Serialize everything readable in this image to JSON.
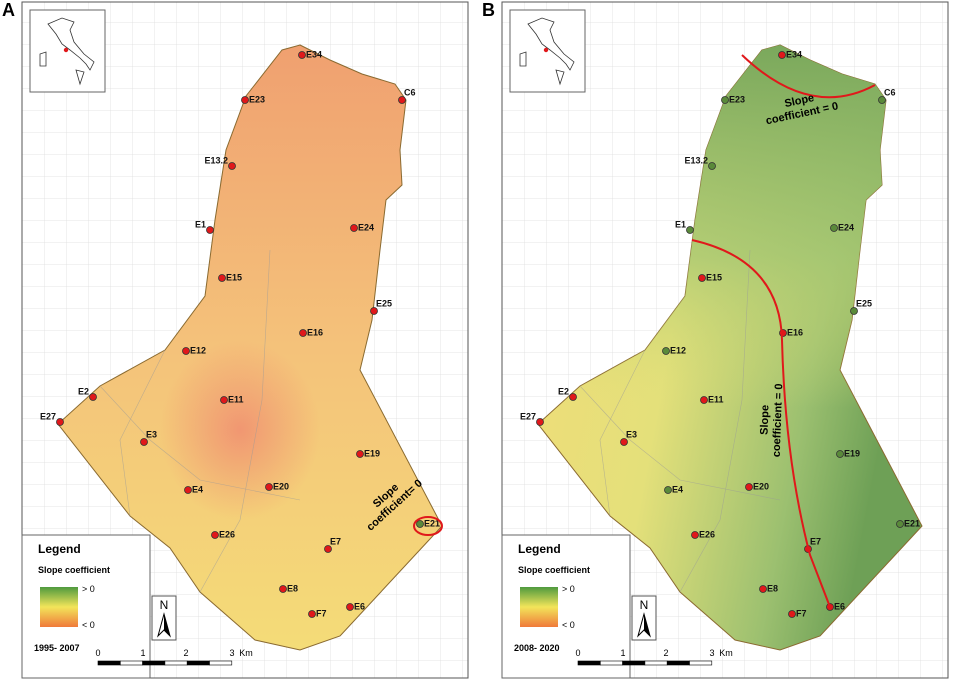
{
  "panels": [
    {
      "letter": "A",
      "period": "1995- 2007",
      "legend": {
        "title": "Legend",
        "subtitle": "Slope coefficient",
        "high": "> 0",
        "low": "< 0"
      },
      "north": "N",
      "scale": [
        "0",
        "1",
        "2",
        "3",
        "Km"
      ],
      "annotations": [
        [
          "Slope",
          "coefficient= 0"
        ]
      ],
      "stations": [
        {
          "label": "E34",
          "color": "#e0181b"
        },
        {
          "label": "E23",
          "color": "#e0181b"
        },
        {
          "label": "C6",
          "color": "#e0181b"
        },
        {
          "label": "E13.2",
          "color": "#e0181b"
        },
        {
          "label": "E1",
          "color": "#e0181b"
        },
        {
          "label": "E24",
          "color": "#e0181b"
        },
        {
          "label": "E15",
          "color": "#e0181b"
        },
        {
          "label": "E25",
          "color": "#e0181b"
        },
        {
          "label": "E16",
          "color": "#e0181b"
        },
        {
          "label": "E12",
          "color": "#e0181b"
        },
        {
          "label": "E2",
          "color": "#e0181b"
        },
        {
          "label": "E11",
          "color": "#e0181b"
        },
        {
          "label": "E27",
          "color": "#e0181b"
        },
        {
          "label": "E3",
          "color": "#e0181b"
        },
        {
          "label": "E19",
          "color": "#e0181b"
        },
        {
          "label": "E4",
          "color": "#e0181b"
        },
        {
          "label": "E20",
          "color": "#e0181b"
        },
        {
          "label": "E21",
          "color": "#5a8a3a"
        },
        {
          "label": "E26",
          "color": "#e0181b"
        },
        {
          "label": "E7",
          "color": "#e0181b"
        },
        {
          "label": "E8",
          "color": "#e0181b"
        },
        {
          "label": "E6",
          "color": "#e0181b"
        },
        {
          "label": "F7",
          "color": "#e0181b"
        }
      ]
    },
    {
      "letter": "B",
      "period": "2008- 2020",
      "legend": {
        "title": "Legend",
        "subtitle": "Slope coefficient",
        "high": "> 0",
        "low": "< 0"
      },
      "north": "N",
      "scale": [
        "0",
        "1",
        "2",
        "3",
        "Km"
      ],
      "annotations": [
        [
          "Slope",
          "coefficient = 0"
        ],
        [
          "Slope",
          "coefficient = 0"
        ]
      ],
      "stations": [
        {
          "label": "E34",
          "color": "#e0181b"
        },
        {
          "label": "E23",
          "color": "#5a8a3a"
        },
        {
          "label": "C6",
          "color": "#5a8a3a"
        },
        {
          "label": "E13.2",
          "color": "#5a8a3a"
        },
        {
          "label": "E1",
          "color": "#5a8a3a"
        },
        {
          "label": "E24",
          "color": "#5a8a3a"
        },
        {
          "label": "E15",
          "color": "#e0181b"
        },
        {
          "label": "E25",
          "color": "#5a8a3a"
        },
        {
          "label": "E16",
          "color": "#e0181b"
        },
        {
          "label": "E12",
          "color": "#5a8a3a"
        },
        {
          "label": "E2",
          "color": "#e0181b"
        },
        {
          "label": "E11",
          "color": "#e0181b"
        },
        {
          "label": "E27",
          "color": "#e0181b"
        },
        {
          "label": "E3",
          "color": "#e0181b"
        },
        {
          "label": "E19",
          "color": "#5a8a3a"
        },
        {
          "label": "E4",
          "color": "#5a8a3a"
        },
        {
          "label": "E20",
          "color": "#e0181b"
        },
        {
          "label": "E21",
          "color": "#5a8a3a"
        },
        {
          "label": "E26",
          "color": "#e0181b"
        },
        {
          "label": "E7",
          "color": "#e0181b"
        },
        {
          "label": "E8",
          "color": "#e0181b"
        },
        {
          "label": "E6",
          "color": "#e0181b"
        },
        {
          "label": "F7",
          "color": "#e0181b"
        }
      ]
    }
  ]
}
